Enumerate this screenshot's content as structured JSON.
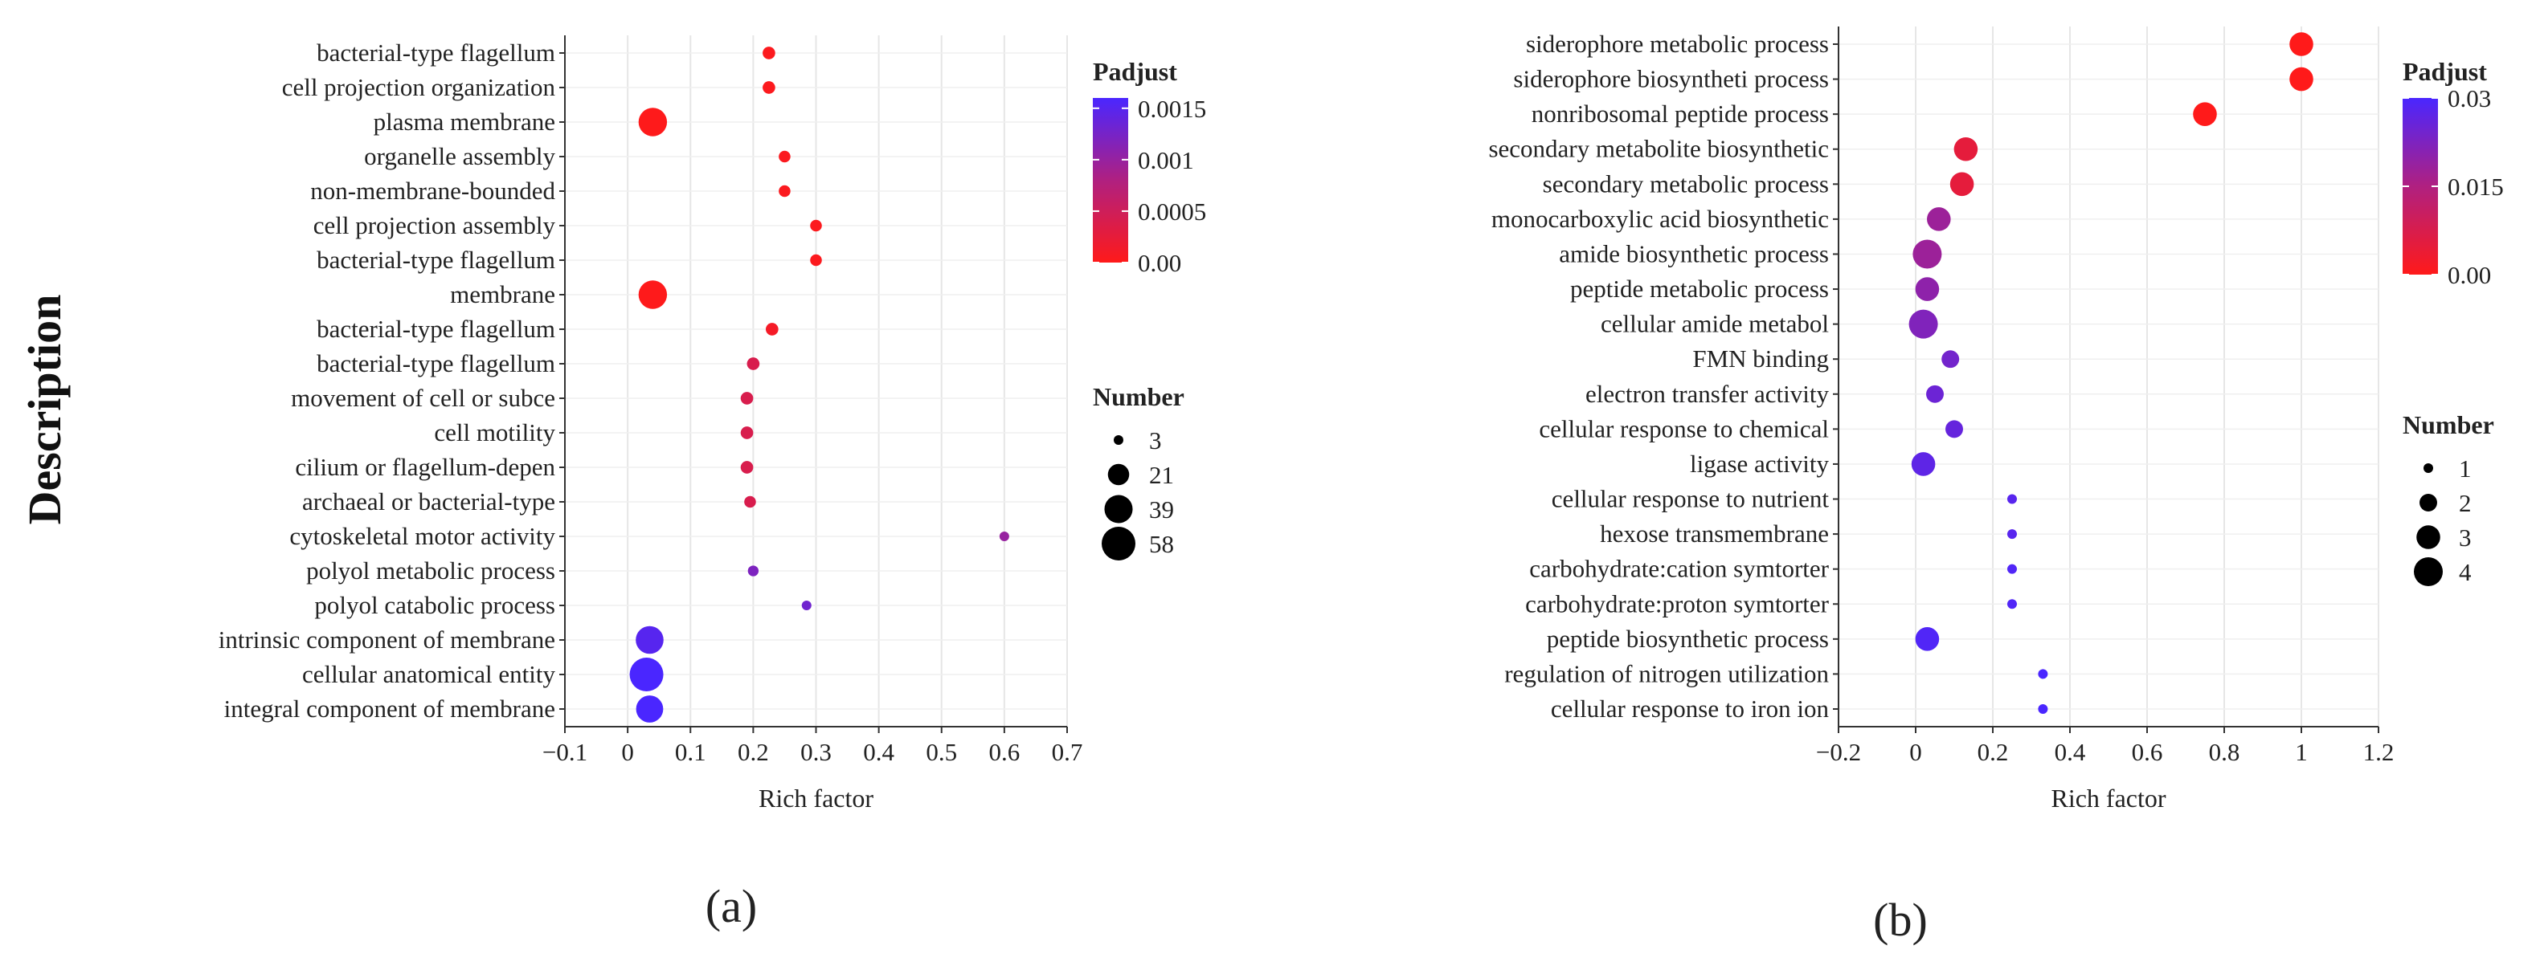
{
  "figure": {
    "y_axis_title": "Description",
    "panel_labels": [
      "(a)",
      "(b)"
    ]
  },
  "chart_data": [
    {
      "type": "scatter",
      "panel": "(a)",
      "xlabel": "Rich factor",
      "ylabel": "Description",
      "xlim": [
        -0.1,
        0.7
      ],
      "xticks": [
        -0.1,
        0,
        0.1,
        0.2,
        0.3,
        0.4,
        0.5,
        0.6,
        0.7
      ],
      "xtick_labels": [
        "−0.1",
        "0",
        "0.1",
        "0.2",
        "0.3",
        "0.4",
        "0.5",
        "0.6",
        "0.7"
      ],
      "categories": [
        "bacterial-type flagellum",
        "cell projection organization",
        "plasma membrane",
        "organelle assembly",
        "non-membrane-bounded",
        "cell projection assembly",
        "bacterial-type flagellum",
        "membrane",
        "bacterial-type flagellum",
        "bacterial-type flagellum",
        "movement of cell or subce",
        "cell motility",
        "cilium or flagellum-depen",
        "archaeal or bacterial-type",
        "cytoskeletal motor activity",
        "polyol metabolic process",
        "polyol catabolic process",
        "intrinsic component of membrane",
        "cellular anatomical entity",
        "integral component of membrane"
      ],
      "rich_factor": [
        0.225,
        0.225,
        0.04,
        0.25,
        0.25,
        0.3,
        0.3,
        0.04,
        0.23,
        0.2,
        0.19,
        0.19,
        0.19,
        0.195,
        0.6,
        0.2,
        0.285,
        0.035,
        0.03,
        0.035
      ],
      "number": [
        6,
        6,
        40,
        5,
        5,
        5,
        5,
        40,
        6,
        6,
        6,
        6,
        6,
        5,
        3,
        4,
        3,
        38,
        58,
        36
      ],
      "padjust": [
        3e-05,
        3e-05,
        1e-05,
        4e-05,
        4e-05,
        3e-05,
        3e-05,
        1e-05,
        0.0001,
        0.0004,
        0.0004,
        0.0004,
        0.0004,
        0.0004,
        0.001,
        0.0012,
        0.0013,
        0.0015,
        0.0016,
        0.0016
      ],
      "color_legend": {
        "title": "Padjust",
        "min": 0,
        "max": 0.0016,
        "ticks": [
          0,
          0.0005,
          0.001,
          0.0015
        ],
        "tick_labels": [
          "0.00",
          "0.0005",
          "0.001",
          "0.0015"
        ],
        "low_color": "#ff1a1a",
        "high_color": "#4a26ff"
      },
      "size_legend": {
        "title": "Number",
        "values": [
          3,
          21,
          39,
          58
        ],
        "labels": [
          "3",
          "21",
          "39",
          "58"
        ]
      }
    },
    {
      "type": "scatter",
      "panel": "(b)",
      "xlabel": "Rich factor",
      "ylabel": "",
      "xlim": [
        -0.2,
        1.2
      ],
      "xticks": [
        -0.2,
        0,
        0.2,
        0.4,
        0.6,
        0.8,
        1,
        1.2
      ],
      "xtick_labels": [
        "−0.2",
        "0",
        "0.2",
        "0.4",
        "0.6",
        "0.8",
        "1",
        "1.2"
      ],
      "categories": [
        "siderophore metabolic process",
        "siderophore biosyntheti process",
        "nonribosomal peptide process",
        "secondary metabolite biosynthetic",
        "secondary metabolic process",
        "monocarboxylic acid biosynthetic",
        "amide biosynthetic process",
        "peptide metabolic process",
        "cellular amide metabol",
        "FMN binding",
        "electron transfer activity",
        "cellular response to chemical",
        "ligase activity",
        "cellular response to nutrient",
        "hexose transmembrane",
        "carbohydrate:cation symtorter",
        "carbohydrate:proton symtorter",
        "peptide biosynthetic process",
        "regulation of nitrogen utilization",
        "cellular response to iron ion"
      ],
      "rich_factor": [
        1.0,
        1.0,
        0.75,
        0.13,
        0.12,
        0.06,
        0.03,
        0.03,
        0.02,
        0.09,
        0.05,
        0.1,
        0.02,
        0.25,
        0.25,
        0.25,
        0.25,
        0.03,
        0.33,
        0.33
      ],
      "number": [
        3,
        3,
        3,
        3,
        3,
        3,
        4,
        3,
        4,
        2,
        2,
        2,
        3,
        1,
        1,
        1,
        1,
        3,
        1,
        1
      ],
      "padjust": [
        0.0,
        0.0,
        0.0,
        0.005,
        0.005,
        0.018,
        0.018,
        0.02,
        0.022,
        0.024,
        0.025,
        0.026,
        0.027,
        0.028,
        0.028,
        0.029,
        0.029,
        0.029,
        0.03,
        0.03
      ],
      "color_legend": {
        "title": "Padjust",
        "min": 0,
        "max": 0.03,
        "ticks": [
          0,
          0.015,
          0.03
        ],
        "tick_labels": [
          "0.00",
          "0.015",
          "0.03"
        ],
        "low_color": "#ff1a1a",
        "high_color": "#4a26ff"
      },
      "size_legend": {
        "title": "Number",
        "values": [
          1,
          2,
          3,
          4
        ],
        "labels": [
          "1",
          "2",
          "3",
          "4"
        ]
      }
    }
  ]
}
